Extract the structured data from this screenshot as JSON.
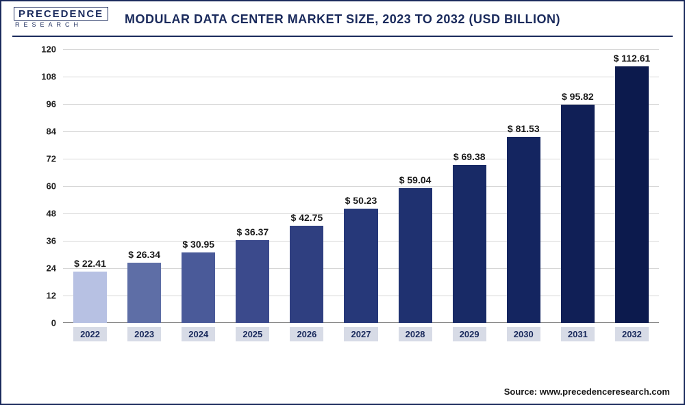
{
  "logo": {
    "line1": "PRECEDENCE",
    "line2": "RESEARCH"
  },
  "title": "MODULAR DATA CENTER MARKET SIZE, 2023 TO 2032 (USD BILLION)",
  "source": "Source: www.precedenceresearch.com",
  "chart": {
    "type": "bar",
    "ylim": [
      0,
      120
    ],
    "ytick_step": 12,
    "yticks": [
      0,
      12,
      24,
      36,
      48,
      60,
      72,
      84,
      96,
      108,
      120
    ],
    "grid_color": "#d6d6d6",
    "background_color": "#ffffff",
    "label_prefix": "$ ",
    "label_fontsize": 14,
    "tick_fontsize": 13,
    "bar_width_ratio": 0.62,
    "categories": [
      "2022",
      "2023",
      "2024",
      "2025",
      "2026",
      "2027",
      "2028",
      "2029",
      "2030",
      "2031",
      "2032"
    ],
    "values": [
      22.41,
      26.34,
      30.95,
      36.37,
      42.75,
      50.23,
      59.04,
      69.38,
      81.53,
      95.82,
      112.61
    ],
    "bar_colors": [
      "#b7c1e3",
      "#5e6ea6",
      "#4a5a99",
      "#3b4a8c",
      "#2f3f80",
      "#263879",
      "#1f3170",
      "#182a66",
      "#142560",
      "#101f56",
      "#0c1a4d"
    ],
    "xlabel_bg": "#d7dbe6",
    "xlabel_color": "#1a2a5c"
  }
}
